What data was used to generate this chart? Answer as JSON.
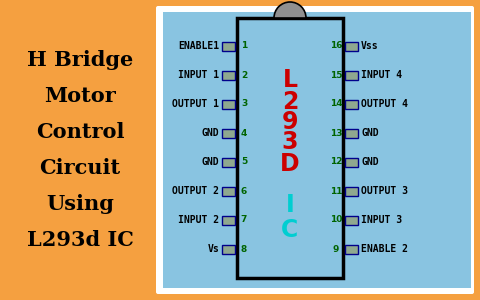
{
  "bg_color": "#F5A040",
  "panel_white_bg": "#FFFFFF",
  "panel_bg": "#89C4E1",
  "ic_bg": "#89C4E1",
  "ic_border": "#000000",
  "pin_box_color": "#8FA88F",
  "pin_box_border": "#00008B",
  "title_lines": [
    "H Bridge",
    "Motor",
    "Control",
    "Circuit",
    "Using",
    "L293d IC"
  ],
  "title_color": "#000000",
  "title_fontsize": 15,
  "left_pins": [
    {
      "num": "1",
      "label": "ENABLE1"
    },
    {
      "num": "2",
      "label": "INPUT 1"
    },
    {
      "num": "3",
      "label": "OUTPUT 1"
    },
    {
      "num": "4",
      "label": "GND"
    },
    {
      "num": "5",
      "label": "GND"
    },
    {
      "num": "6",
      "label": "OUTPUT 2"
    },
    {
      "num": "7",
      "label": "INPUT 2"
    },
    {
      "num": "8",
      "label": "Vs"
    }
  ],
  "right_pins": [
    {
      "num": "16",
      "label": "Vss"
    },
    {
      "num": "15",
      "label": "INPUT 4"
    },
    {
      "num": "14",
      "label": "OUTPUT 4"
    },
    {
      "num": "13",
      "label": "GND"
    },
    {
      "num": "12",
      "label": "GND"
    },
    {
      "num": "11",
      "label": "OUTPUT 3"
    },
    {
      "num": "10",
      "label": "INPUT 3"
    },
    {
      "num": "9",
      "label": "ENABLE 2"
    }
  ],
  "ic_label_color_red": "#CC0000",
  "ic_label_color_cyan": "#00CED1",
  "ic_notch_color": "#909090",
  "num_color": "#006400",
  "label_color": "#000000"
}
